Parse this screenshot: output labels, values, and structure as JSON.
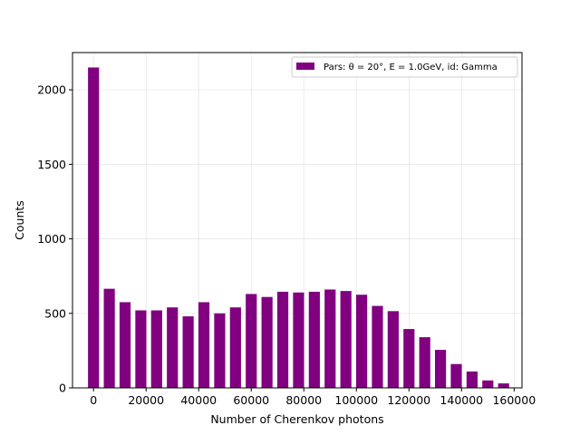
{
  "chart_data": {
    "type": "bar",
    "xlabel": "Number of Cherenkov photons",
    "ylabel": "Counts",
    "xlim": [
      -8000,
      163000
    ],
    "ylim": [
      0,
      2250
    ],
    "x_ticks": [
      0,
      20000,
      40000,
      60000,
      80000,
      100000,
      120000,
      140000,
      160000
    ],
    "x_tick_labels": [
      "0",
      "20000",
      "40000",
      "60000",
      "80000",
      "100000",
      "120000",
      "140000",
      "160000"
    ],
    "y_ticks": [
      0,
      500,
      1000,
      1500,
      2000
    ],
    "y_tick_labels": [
      "0",
      "500",
      "1000",
      "1500",
      "2000"
    ],
    "grid": true,
    "legend_position": "upper-right",
    "bar_width": 4200,
    "series": [
      {
        "name": "Pars: θ = 20°, E = 1.0GeV, id: Gamma",
        "color": "#800080",
        "x": [
          0,
          6000,
          12000,
          18000,
          24000,
          30000,
          36000,
          42000,
          48000,
          54000,
          60000,
          66000,
          72000,
          78000,
          84000,
          90000,
          96000,
          102000,
          108000,
          114000,
          120000,
          126000,
          132000,
          138000,
          144000,
          150000,
          156000
        ],
        "values": [
          2150,
          665,
          575,
          520,
          520,
          540,
          480,
          575,
          500,
          540,
          630,
          610,
          645,
          640,
          645,
          660,
          650,
          625,
          550,
          515,
          395,
          340,
          255,
          160,
          110,
          50,
          30
        ]
      }
    ]
  }
}
